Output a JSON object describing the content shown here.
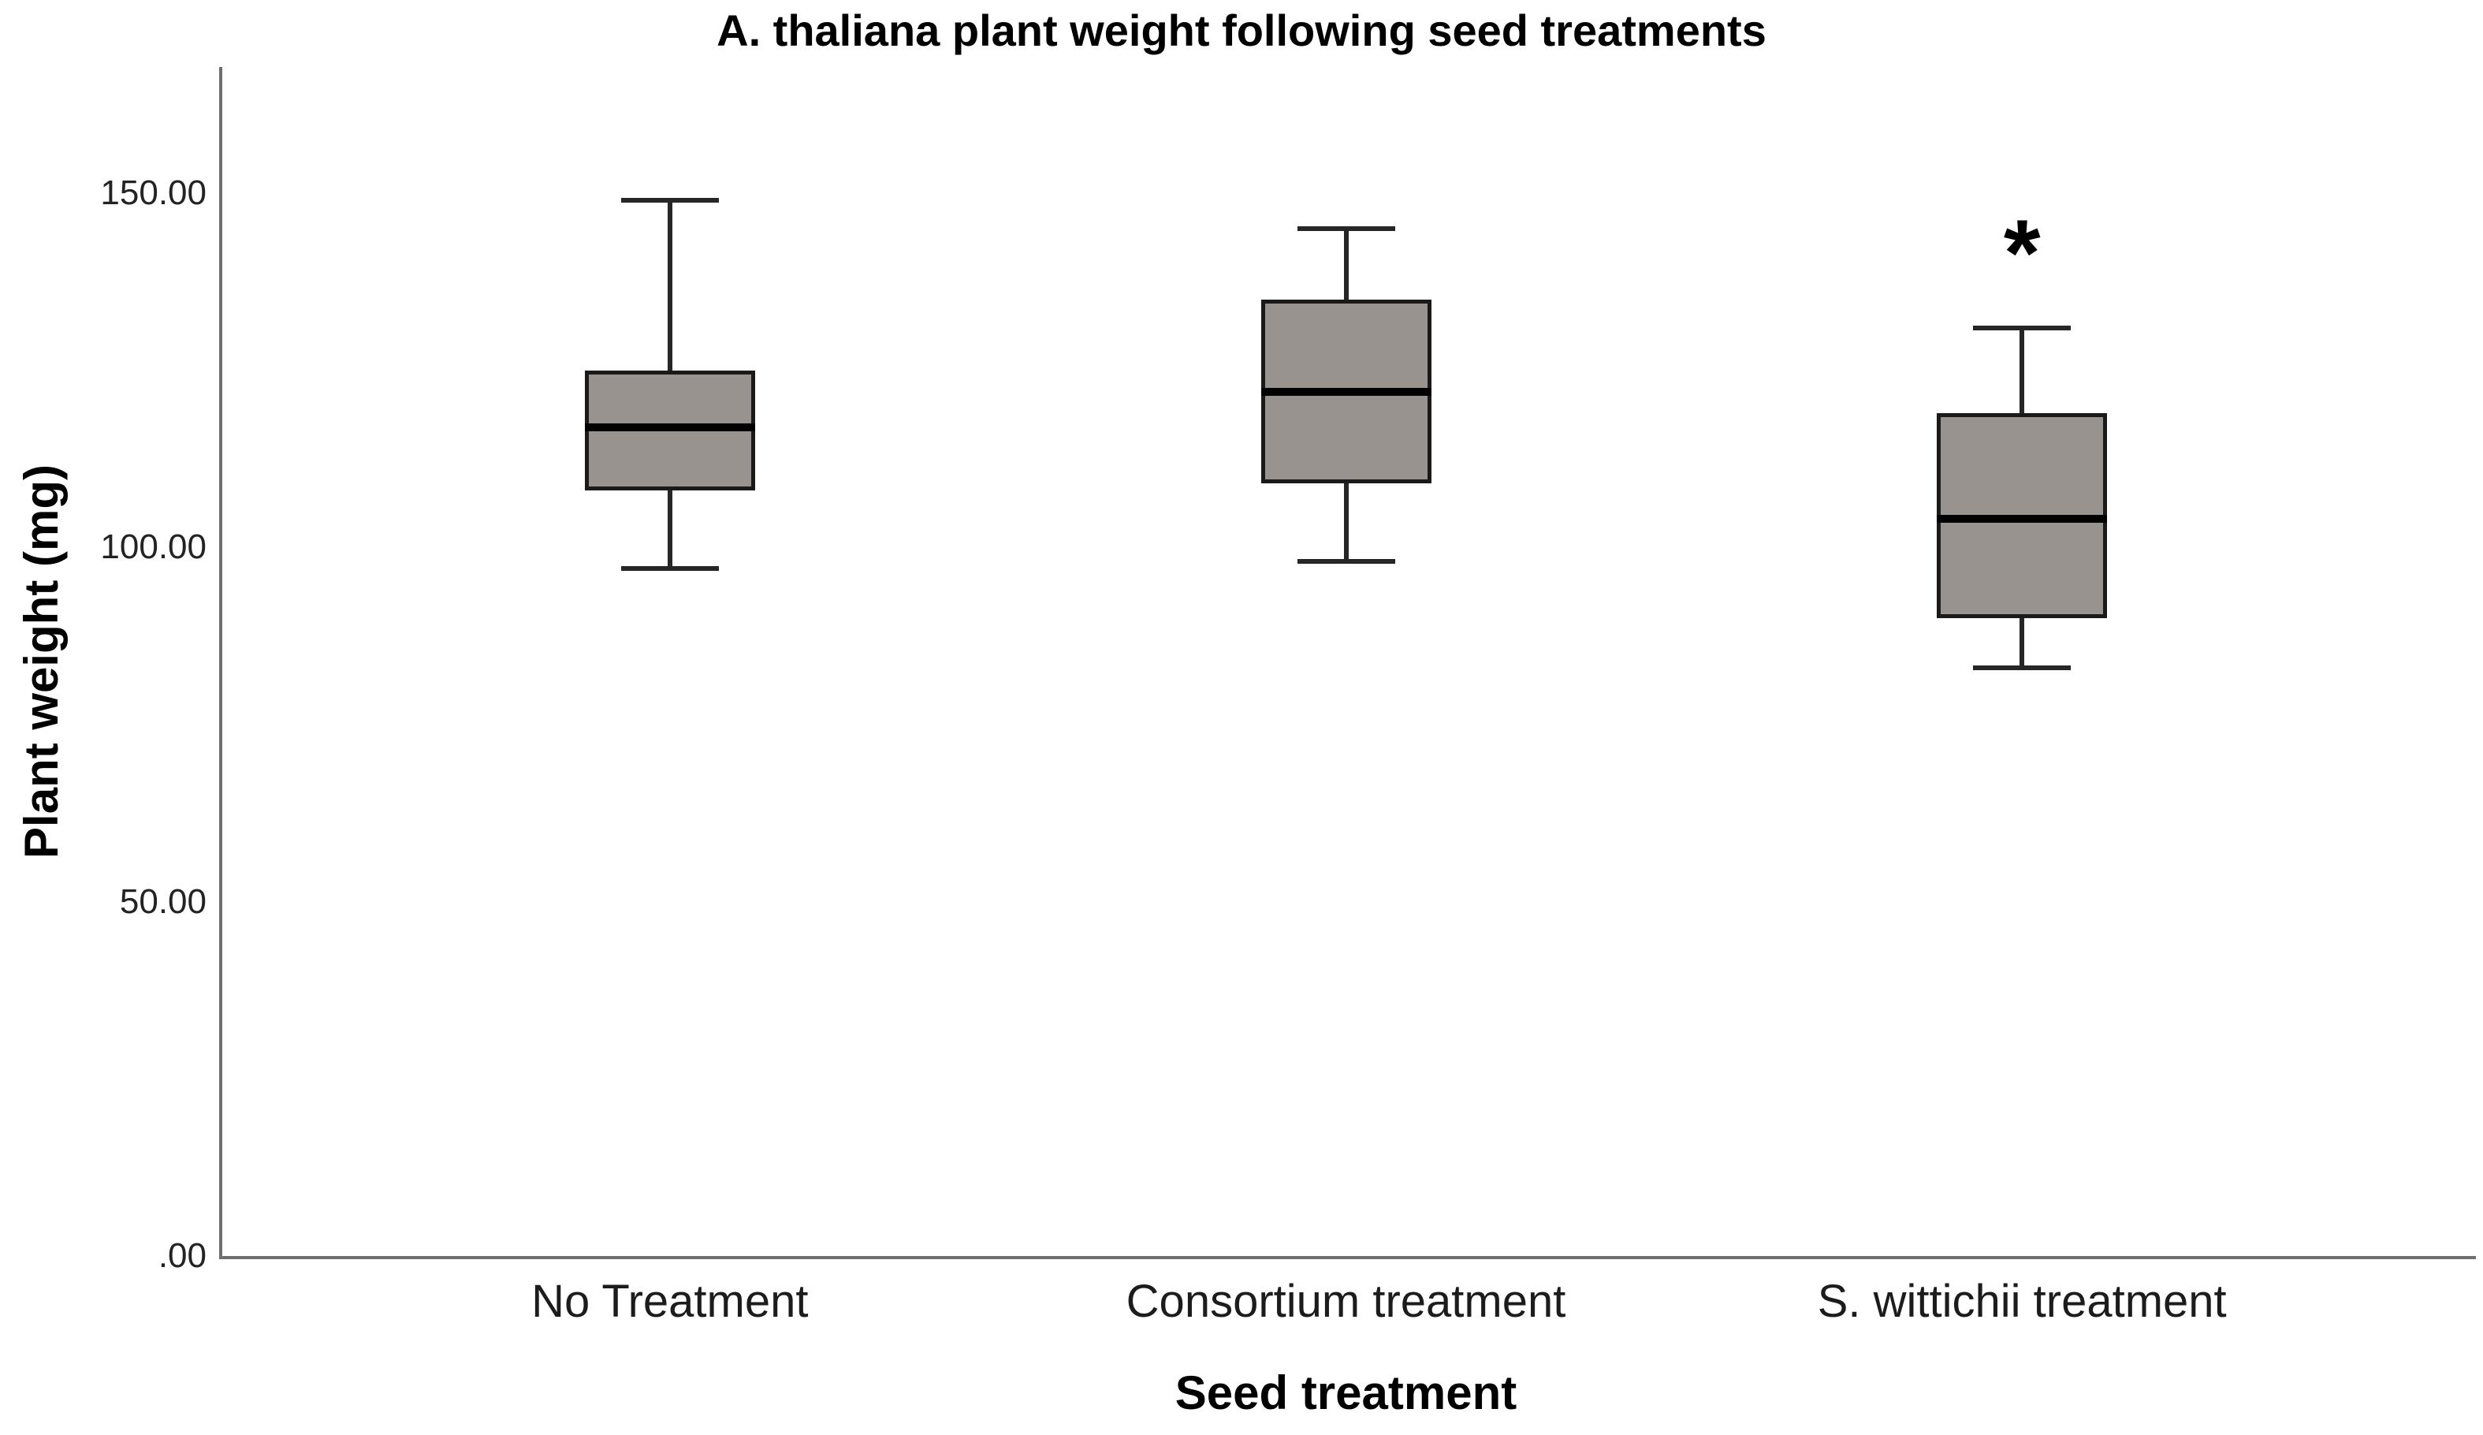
{
  "title": "A. thaliana plant weight following seed treatments",
  "chart_data": {
    "type": "boxplot",
    "title": "A. thaliana plant weight following seed treatments",
    "xlabel": "Seed treatment",
    "ylabel": "Plant weight (mg)",
    "categories": [
      "No Treatment",
      "Consortium treatment",
      "S. wittichii treatment"
    ],
    "series": [
      {
        "category": "No Treatment",
        "whisker_low": 97,
        "q1": 108,
        "median": 117,
        "q3": 125,
        "whisker_high": 149,
        "annotation": ""
      },
      {
        "category": "Consortium treatment",
        "whisker_low": 98,
        "q1": 109,
        "median": 122,
        "q3": 135,
        "whisker_high": 145,
        "annotation": ""
      },
      {
        "category": "S. wittichii treatment",
        "whisker_low": 83,
        "q1": 90,
        "median": 104,
        "q3": 119,
        "whisker_high": 131,
        "annotation": "*"
      }
    ],
    "y_ticks": [
      {
        "value": 0,
        "label": ".00"
      },
      {
        "value": 50,
        "label": "50.00"
      },
      {
        "value": 100,
        "label": "100.00"
      },
      {
        "value": 150,
        "label": "150.00"
      }
    ],
    "ylim": [
      0,
      167
    ],
    "grid": false,
    "legend": "none",
    "colors": {
      "box_fill": "#999390",
      "box_border": "#1a1a1a",
      "median": "#000000",
      "whisker": "#262626",
      "axis": "#6e6e6e",
      "background": "#ffffff"
    }
  }
}
